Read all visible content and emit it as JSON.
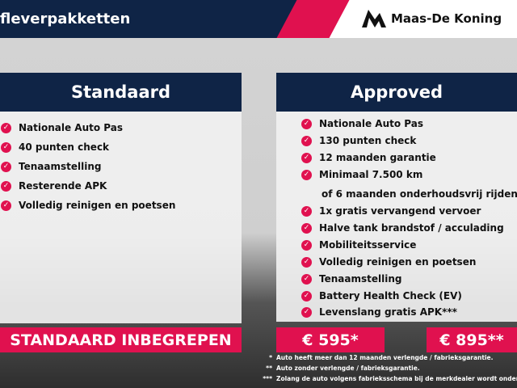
{
  "header": {
    "title": "fleverpakketten",
    "brand": "Maas-De Koning"
  },
  "colors": {
    "navy": "#0f2446",
    "accent": "#e0114f"
  },
  "standaard": {
    "title": "Standaard",
    "items": [
      "Nationale Auto Pas",
      "40 punten check",
      "Tenaamstelling",
      "Resterende APK",
      "Volledig reinigen en poetsen"
    ],
    "price": "STANDAARD INBEGREPEN"
  },
  "approved": {
    "title": "Approved",
    "items": [
      {
        "text": "Nationale Auto Pas",
        "check": true
      },
      {
        "text": "130 punten check",
        "check": true
      },
      {
        "text": "12 maanden garantie",
        "check": true
      },
      {
        "text": "Minimaal 7.500 km",
        "check": true
      },
      {
        "text": "of 6 maanden onderhoudsvrij rijden",
        "check": false
      },
      {
        "text": "1x gratis vervangend vervoer",
        "check": true
      },
      {
        "text": "Halve tank brandstof / acculading",
        "check": true
      },
      {
        "text": "Mobiliteitsservice",
        "check": true
      },
      {
        "text": "Volledig reinigen en poetsen",
        "check": true
      },
      {
        "text": "Tenaamstelling",
        "check": true
      },
      {
        "text": "Battery Health Check (EV)",
        "check": true
      },
      {
        "text": "Levenslang gratis APK***",
        "check": true
      }
    ],
    "price1": "€ 595*",
    "price2": "€ 895**"
  },
  "notes": [
    {
      "mark": "*",
      "text": "Auto heeft meer dan 12 maanden verlengde / fabrieksgarantie."
    },
    {
      "mark": "**",
      "text": "Auto zonder verlengde / fabrieksgarantie."
    },
    {
      "mark": "***",
      "text": "Zolang de auto volgens fabrieksschema bij de merkdealer wordt onderhoud"
    }
  ]
}
